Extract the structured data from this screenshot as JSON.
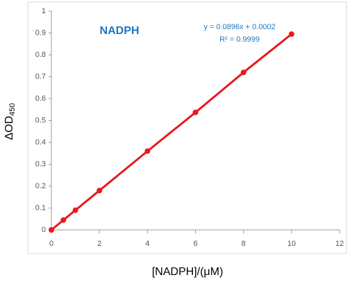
{
  "chart_data": {
    "type": "line",
    "title": "NADPH",
    "annotations": [
      "y = 0.0896x + 0.0002",
      "R² = 0.9999"
    ],
    "x_label": "[NADPH]/(μM)",
    "y_label": "ΔOD",
    "y_label_subscript": "450",
    "x": [
      0,
      0.5,
      1,
      2,
      4,
      6,
      8,
      10
    ],
    "series": [
      {
        "color": "#e8191e",
        "values": [
          0,
          0.045,
          0.09,
          0.18,
          0.36,
          0.537,
          0.72,
          0.895
        ]
      }
    ],
    "xlim": [
      0,
      12
    ],
    "xticks": [
      0,
      2,
      4,
      6,
      8,
      10,
      12
    ],
    "ylim": [
      0,
      1
    ],
    "yticks": [
      0,
      0.1,
      0.2,
      0.3,
      0.4,
      0.5,
      0.6,
      0.7,
      0.8,
      0.9,
      1
    ],
    "grid": false
  }
}
